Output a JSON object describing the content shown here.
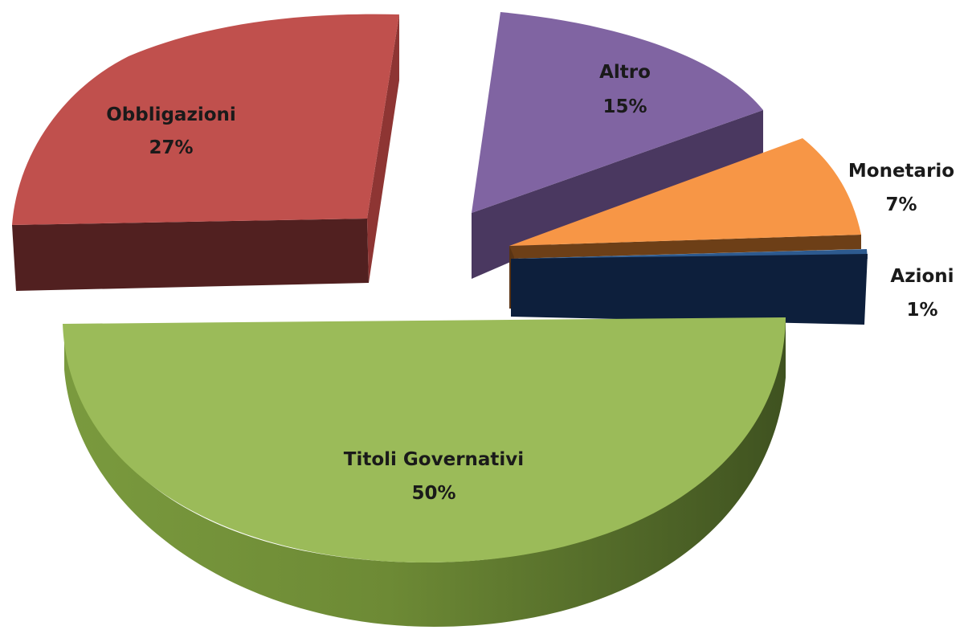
{
  "chart_data": {
    "type": "pie",
    "style": "3d-exploded",
    "legend": "none",
    "slices": [
      {
        "label": "Obbligazioni",
        "value": 27,
        "value_label": "27%",
        "color": "#C0504D"
      },
      {
        "label": "Altro",
        "value": 15,
        "value_label": "15%",
        "color": "#8064A2"
      },
      {
        "label": "Monetario",
        "value": 7,
        "value_label": "7%",
        "color": "#F79646"
      },
      {
        "label": "Azioni",
        "value": 1,
        "value_label": "1%",
        "color": "#1F497D"
      },
      {
        "label": "Titoli Governativi",
        "value": 50,
        "value_label": "50%",
        "color": "#9BBB59"
      }
    ]
  }
}
